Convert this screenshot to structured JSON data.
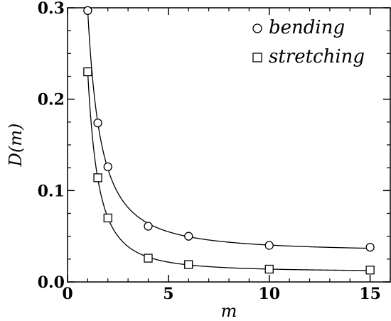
{
  "chart_data": {
    "type": "scatter",
    "xlabel": "m",
    "ylabel": "D(m)",
    "xlim": [
      0,
      16
    ],
    "ylim": [
      0,
      0.3
    ],
    "x_ticks": [
      0,
      5,
      10,
      15
    ],
    "x_tick_labels": [
      "0",
      "5",
      "10",
      "15"
    ],
    "y_ticks": [
      0.0,
      0.1,
      0.2,
      0.3
    ],
    "y_tick_labels": [
      "0.0",
      "0.1",
      "0.2",
      "0.3"
    ],
    "grid": false,
    "legend_position": "top-right",
    "series": [
      {
        "name": "bending",
        "marker": "circle",
        "x": [
          1,
          1.5,
          2,
          4,
          6,
          10,
          15
        ],
        "y": [
          0.297,
          0.174,
          0.126,
          0.061,
          0.05,
          0.04,
          0.038
        ],
        "fit_curve": true
      },
      {
        "name": "stretching",
        "marker": "square",
        "x": [
          1,
          1.5,
          2,
          4,
          6,
          10,
          15
        ],
        "y": [
          0.23,
          0.114,
          0.07,
          0.026,
          0.019,
          0.014,
          0.013
        ],
        "fit_curve": true
      }
    ]
  }
}
